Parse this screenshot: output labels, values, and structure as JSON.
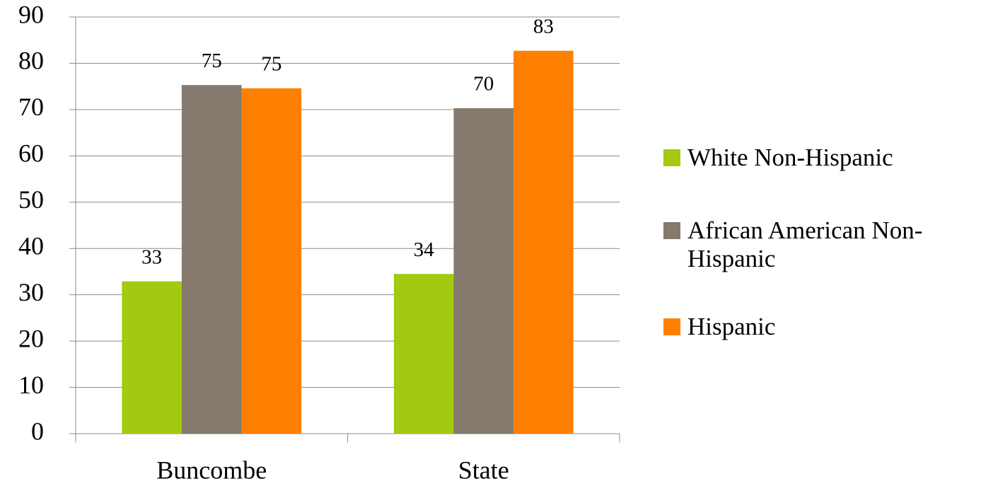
{
  "chart_data": {
    "type": "bar",
    "categories": [
      "Buncombe",
      "State"
    ],
    "series": [
      {
        "name": "White Non-Hispanic",
        "color": "#a3c910",
        "values": [
          32.9,
          34.5
        ],
        "value_labels": [
          "33",
          "34"
        ]
      },
      {
        "name": "African American Non-Hispanic",
        "color": "#857a6d",
        "values": [
          75.3,
          70.3
        ],
        "value_labels": [
          "75",
          "70"
        ]
      },
      {
        "name": "Hispanic",
        "color": "#ff8000",
        "values": [
          74.6,
          82.7
        ],
        "value_labels": [
          "75",
          "83"
        ]
      }
    ],
    "ylim": [
      0,
      90
    ],
    "yticks": [
      0,
      10,
      20,
      30,
      40,
      50,
      60,
      70,
      80,
      90
    ],
    "grid": true,
    "legend": "right"
  }
}
